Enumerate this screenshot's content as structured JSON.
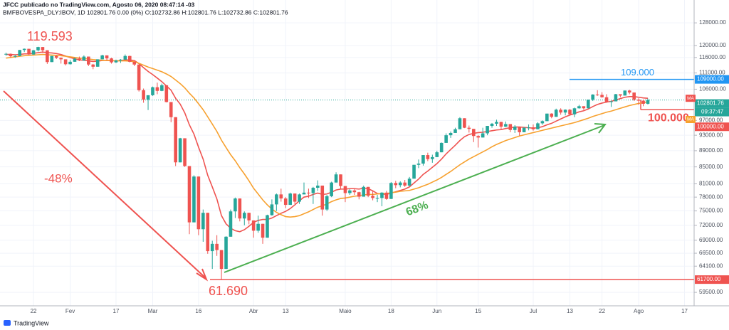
{
  "chart_data": {
    "type": "candlestick",
    "publisher": "JFCC publicado no TradingView.com, Agosto 06, 2020 08:47:14 -03",
    "symbol_line": "BMFBOVESPA_DLY:IBOV, 1D  102801.76  0.00 (0%)  O:102732.86  H:102801.76  L:102732.86  C:102801.76",
    "brand": "TradingView",
    "categories": [
      null,
      null,
      null,
      null,
      null,
      null,
      "22",
      null,
      null,
      null,
      null,
      null,
      null,
      null,
      "Fev",
      null,
      null,
      null,
      null,
      null,
      null,
      null,
      null,
      null,
      "17",
      null,
      null,
      null,
      null,
      null,
      null,
      null,
      "Mar",
      null,
      null,
      null,
      null,
      null,
      null,
      null,
      null,
      null,
      "16",
      null,
      null,
      null,
      null,
      null,
      null,
      null,
      null,
      null,
      null,
      null,
      "Abr",
      null,
      null,
      null,
      null,
      null,
      null,
      "13",
      null,
      null,
      null,
      null,
      null,
      null,
      null,
      null,
      null,
      null,
      null,
      null,
      "Maio",
      null,
      null,
      null,
      null,
      null,
      null,
      null,
      null,
      null,
      "18",
      null,
      null,
      null,
      null,
      null,
      null,
      null,
      null,
      null,
      "Jun",
      null,
      null,
      null,
      null,
      null,
      null,
      null,
      null,
      "15",
      null,
      null,
      null,
      null,
      null,
      null,
      null,
      null,
      null,
      null,
      null,
      "Jul",
      null,
      null,
      null,
      null,
      null,
      null,
      null,
      "13",
      null,
      null,
      null,
      null,
      null,
      null,
      "22",
      null,
      null,
      null,
      null,
      null,
      null,
      null,
      "Ago",
      null,
      null,
      null,
      null,
      null,
      null,
      null,
      null,
      null,
      "17"
    ],
    "open": [
      117000,
      117200,
      116400,
      116500,
      118500,
      118900,
      117000,
      118400,
      119500,
      118400,
      114500,
      116500,
      115900,
      115400,
      113800,
      114600,
      115600,
      115000,
      116300,
      113700,
      113000,
      115400,
      116700,
      115700,
      114400,
      115000,
      115300,
      116500,
      114600,
      113700,
      105700,
      102900,
      104200,
      106600,
      105500,
      107200,
      102200,
      97900,
      86100,
      92200,
      85200,
      72600,
      82700,
      71200,
      74600,
      66900,
      68300,
      67100,
      63600,
      69700,
      74900,
      77700,
      73400,
      74600,
      73000,
      70900,
      72300,
      69500,
      74100,
      76400,
      78600,
      77700,
      76300,
      78800,
      77000,
      78600,
      79000,
      78900,
      80100,
      80600,
      75300,
      78200,
      81300,
      83200,
      80500,
      78900,
      79500,
      79100,
      78100,
      80300,
      78300,
      77800,
      77800,
      79000,
      77600,
      81200,
      80700,
      81300,
      80600,
      82200,
      85500,
      85800,
      87900,
      86900,
      87400,
      88600,
      91000,
      93000,
      93600,
      94600,
      97600,
      95000,
      94700,
      92800,
      92400,
      93500,
      95500,
      96100,
      96600,
      95300,
      96000,
      94400,
      95300,
      93800,
      95000,
      95100,
      94600,
      96200,
      96800,
      98900,
      98000,
      100000,
      99200,
      100000,
      98700,
      100400,
      101000,
      100400,
      102900,
      104400,
      104300,
      103600,
      102300,
      102400,
      104500,
      104100,
      105600,
      105000,
      102900,
      102600,
      101700,
      null,
      null,
      null,
      null,
      null,
      null,
      null,
      null
    ],
    "high": [
      117600,
      117300,
      116900,
      118500,
      119000,
      118900,
      118500,
      119593,
      119500,
      118400,
      116500,
      116700,
      116000,
      115400,
      115200,
      116000,
      116300,
      116700,
      116300,
      113900,
      115400,
      116900,
      116700,
      115900,
      115300,
      115500,
      117000,
      116600,
      114600,
      113700,
      106200,
      104200,
      106800,
      108000,
      107700,
      107200,
      102200,
      97900,
      92300,
      92200,
      85200,
      83000,
      82700,
      75300,
      74600,
      68900,
      70000,
      67100,
      69800,
      75300,
      77900,
      77700,
      74900,
      74600,
      73000,
      74000,
      72300,
      74200,
      77500,
      78800,
      79900,
      78000,
      79000,
      78800,
      78800,
      81300,
      79900,
      80300,
      81800,
      80600,
      78500,
      81500,
      83700,
      83200,
      80500,
      79800,
      80000,
      79200,
      80600,
      80300,
      79300,
      78500,
      79100,
      79400,
      81400,
      81700,
      81600,
      81900,
      82600,
      85500,
      86800,
      87900,
      88500,
      88000,
      89000,
      91100,
      93500,
      94000,
      95000,
      97900,
      97600,
      95600,
      94700,
      93000,
      95000,
      95500,
      96300,
      97200,
      96600,
      96700,
      96000,
      95700,
      95300,
      95200,
      95900,
      95900,
      96500,
      97000,
      98900,
      99000,
      100300,
      100400,
      100100,
      100200,
      100600,
      101400,
      101000,
      102900,
      104500,
      105700,
      105100,
      104500,
      102600,
      104600,
      104500,
      105600,
      105800,
      105000,
      103300,
      102900,
      103200,
      null,
      null,
      null,
      null,
      null,
      null,
      null,
      null
    ],
    "low": [
      116600,
      116000,
      115900,
      116400,
      117800,
      116800,
      116900,
      118000,
      117500,
      113900,
      114500,
      115500,
      114000,
      113400,
      113700,
      114600,
      114800,
      114900,
      113200,
      112200,
      113000,
      115400,
      115000,
      114000,
      114200,
      114200,
      115300,
      114400,
      113200,
      105300,
      102000,
      99900,
      104000,
      104500,
      105400,
      102100,
      96500,
      85200,
      86100,
      85000,
      70200,
      72600,
      70000,
      68700,
      66400,
      63600,
      66000,
      61690,
      63600,
      69700,
      73500,
      72800,
      72000,
      72200,
      69500,
      70500,
      68300,
      69500,
      74000,
      75000,
      77000,
      75600,
      76300,
      76500,
      76500,
      78600,
      77800,
      76500,
      79400,
      74000,
      75000,
      78000,
      81300,
      79700,
      76900,
      78500,
      78500,
      77500,
      78100,
      78000,
      77300,
      76900,
      76000,
      77400,
      77600,
      80000,
      80200,
      80300,
      80500,
      82200,
      84700,
      85300,
      86400,
      86000,
      87400,
      88600,
      91000,
      92300,
      93600,
      94600,
      94900,
      93700,
      91200,
      89800,
      92400,
      93000,
      95000,
      95500,
      94600,
      95200,
      93800,
      93600,
      92900,
      93800,
      94300,
      94200,
      94600,
      95800,
      96800,
      97600,
      98000,
      98600,
      98400,
      98500,
      97900,
      100300,
      100000,
      100400,
      102500,
      104000,
      103500,
      102000,
      100800,
      102400,
      103600,
      104100,
      104500,
      102500,
      101400,
      101000,
      101500,
      null,
      null,
      null,
      null,
      null,
      null,
      null,
      null
    ],
    "close": [
      117200,
      116400,
      116500,
      118500,
      118900,
      117000,
      118400,
      119500,
      118400,
      114500,
      116500,
      115900,
      115400,
      113800,
      114600,
      115600,
      115000,
      116300,
      113700,
      113000,
      115400,
      116700,
      115700,
      114400,
      115000,
      115300,
      116500,
      114600,
      113700,
      105700,
      102900,
      104200,
      106600,
      105500,
      107200,
      102200,
      97900,
      86100,
      92200,
      85200,
      72600,
      82700,
      71200,
      74600,
      66900,
      68300,
      67100,
      63600,
      69700,
      74900,
      77700,
      73400,
      74600,
      73000,
      70900,
      72300,
      69500,
      74100,
      76400,
      78600,
      77700,
      76300,
      78800,
      77000,
      78600,
      79000,
      78900,
      80100,
      80600,
      75300,
      78200,
      81300,
      83200,
      80500,
      78900,
      79500,
      79100,
      78100,
      80300,
      78300,
      77800,
      77800,
      79000,
      77600,
      81200,
      80700,
      81300,
      80600,
      82200,
      85500,
      85800,
      87900,
      86900,
      87400,
      88600,
      91000,
      93000,
      93600,
      94600,
      97600,
      95000,
      94700,
      92800,
      92400,
      93500,
      95500,
      96100,
      96600,
      95300,
      96000,
      94400,
      95300,
      93800,
      95000,
      95100,
      94600,
      96200,
      96800,
      98900,
      98000,
      100000,
      99200,
      100000,
      98700,
      100400,
      101000,
      100400,
      102900,
      104400,
      104300,
      103600,
      102300,
      102400,
      104500,
      104100,
      105600,
      105000,
      102900,
      102600,
      101700,
      102800,
      null,
      null,
      null,
      null,
      null,
      null,
      null,
      null
    ],
    "up_color": "#26a69a",
    "down_color": "#ef5350",
    "series": [
      {
        "name": "MA",
        "color": "#ef5350",
        "values": [
          117000,
          117000,
          116900,
          117000,
          117200,
          117200,
          117400,
          117600,
          117800,
          117600,
          117500,
          117300,
          117000,
          116500,
          116000,
          115600,
          115200,
          115100,
          114900,
          114700,
          114800,
          115000,
          115100,
          115000,
          114900,
          115000,
          115200,
          115200,
          115000,
          114000,
          112700,
          111500,
          110500,
          109400,
          108300,
          107000,
          105700,
          103300,
          101600,
          99100,
          95800,
          93300,
          89900,
          86900,
          83000,
          80300,
          77600,
          74000,
          72300,
          71400,
          70900,
          70700,
          71100,
          71800,
          72600,
          73000,
          73200,
          73200,
          73500,
          74000,
          74500,
          74900,
          75500,
          76300,
          77200,
          78000,
          78200,
          78600,
          78900,
          78600,
          78700,
          79100,
          79600,
          79800,
          79800,
          79900,
          79900,
          79800,
          80000,
          79900,
          79400,
          78800,
          78700,
          78600,
          78900,
          79200,
          79500,
          79800,
          80300,
          81200,
          82100,
          83200,
          84000,
          84900,
          85800,
          86900,
          88200,
          89300,
          90400,
          91600,
          92600,
          93200,
          93500,
          93700,
          93800,
          94000,
          94200,
          94400,
          94500,
          94800,
          95000,
          95200,
          95200,
          95100,
          95000,
          94900,
          95000,
          95300,
          95800,
          96200,
          96800,
          97400,
          98000,
          98500,
          98900,
          99400,
          99700,
          100200,
          100900,
          101500,
          101900,
          102200,
          102400,
          102800,
          103200,
          103600,
          103800,
          103800,
          103600,
          103400,
          103300,
          null,
          null,
          null,
          null,
          null,
          null,
          null,
          null
        ]
      },
      {
        "name": "MA",
        "color": "#f7a12f",
        "values": [
          115800,
          116000,
          116200,
          116400,
          116600,
          116700,
          116800,
          116900,
          117000,
          116900,
          116800,
          116700,
          116600,
          116400,
          116200,
          116000,
          115800,
          115700,
          115500,
          115300,
          115200,
          115100,
          115000,
          115000,
          114900,
          114900,
          114900,
          114800,
          114600,
          114100,
          113500,
          112900,
          112400,
          111900,
          111400,
          110700,
          109900,
          108800,
          107700,
          106400,
          104800,
          103400,
          101700,
          100000,
          98000,
          96000,
          94000,
          91700,
          89800,
          88000,
          86500,
          84800,
          83300,
          81700,
          80000,
          78700,
          77400,
          76300,
          75400,
          74700,
          74200,
          73800,
          73700,
          73800,
          74000,
          74400,
          74800,
          75300,
          75800,
          76100,
          76500,
          77000,
          77400,
          77700,
          77800,
          78000,
          78200,
          78300,
          78500,
          78600,
          78600,
          78700,
          78800,
          78800,
          79000,
          79100,
          79300,
          79400,
          79500,
          79800,
          80100,
          80500,
          80900,
          81400,
          81900,
          82500,
          83200,
          83900,
          84700,
          85500,
          86200,
          86900,
          87500,
          88100,
          88700,
          89300,
          90000,
          90600,
          91100,
          91600,
          92000,
          92400,
          92800,
          93100,
          93400,
          93700,
          94000,
          94300,
          94600,
          94900,
          95200,
          95500,
          95800,
          96100,
          96400,
          96800,
          97200,
          97600,
          98100,
          98500,
          98900,
          99300,
          99600,
          100000,
          100400,
          100800,
          101200,
          101500,
          101800,
          102000,
          102300,
          null,
          null,
          null,
          null,
          null,
          null,
          null,
          null
        ]
      }
    ],
    "ylim": [
      57500,
      134400
    ],
    "log_scale": true,
    "grid": true,
    "yticks": [
      {
        "value": 128000,
        "label": "128000.00"
      },
      {
        "value": 120000,
        "label": "120000.00"
      },
      {
        "value": 116000,
        "label": "116000.00"
      },
      {
        "value": 111000,
        "label": "111000.00"
      },
      {
        "value": 106000,
        "label": "106000.00"
      },
      {
        "value": 97000,
        "label": "97000.00"
      },
      {
        "value": 93000,
        "label": "93000.00"
      },
      {
        "value": 89000,
        "label": "89000.00"
      },
      {
        "value": 85000,
        "label": "85000.00"
      },
      {
        "value": 81000,
        "label": "81000.00"
      },
      {
        "value": 78000,
        "label": "78000.00"
      },
      {
        "value": 75000,
        "label": "75000.00"
      },
      {
        "value": 72000,
        "label": "72000.00"
      },
      {
        "value": 69000,
        "label": "69000.00"
      },
      {
        "value": 66500,
        "label": "66500.00"
      },
      {
        "value": 64100,
        "label": "64100.00"
      },
      {
        "value": 59500,
        "label": "59500.00"
      }
    ],
    "last": {
      "value": 102801.76,
      "time": "09:37:47",
      "color": "#26a69a"
    },
    "levels": [
      {
        "value": 109000,
        "axis_label": "109000.00",
        "text": "109.000",
        "color": "#2196f3"
      },
      {
        "value": 100000,
        "axis_label": "100000.00",
        "text": "100.000",
        "color": "#ef5350"
      },
      {
        "value": 61700,
        "axis_label": "61700.00",
        "color": "#ef5350"
      }
    ],
    "annotations": [
      {
        "text": "119.593",
        "color": "#ef5350"
      },
      {
        "text": "-48%",
        "color": "#ef5350"
      },
      {
        "text": "61.690",
        "color": "#ef5350"
      },
      {
        "text": "68%",
        "color": "#4caf50"
      }
    ]
  }
}
